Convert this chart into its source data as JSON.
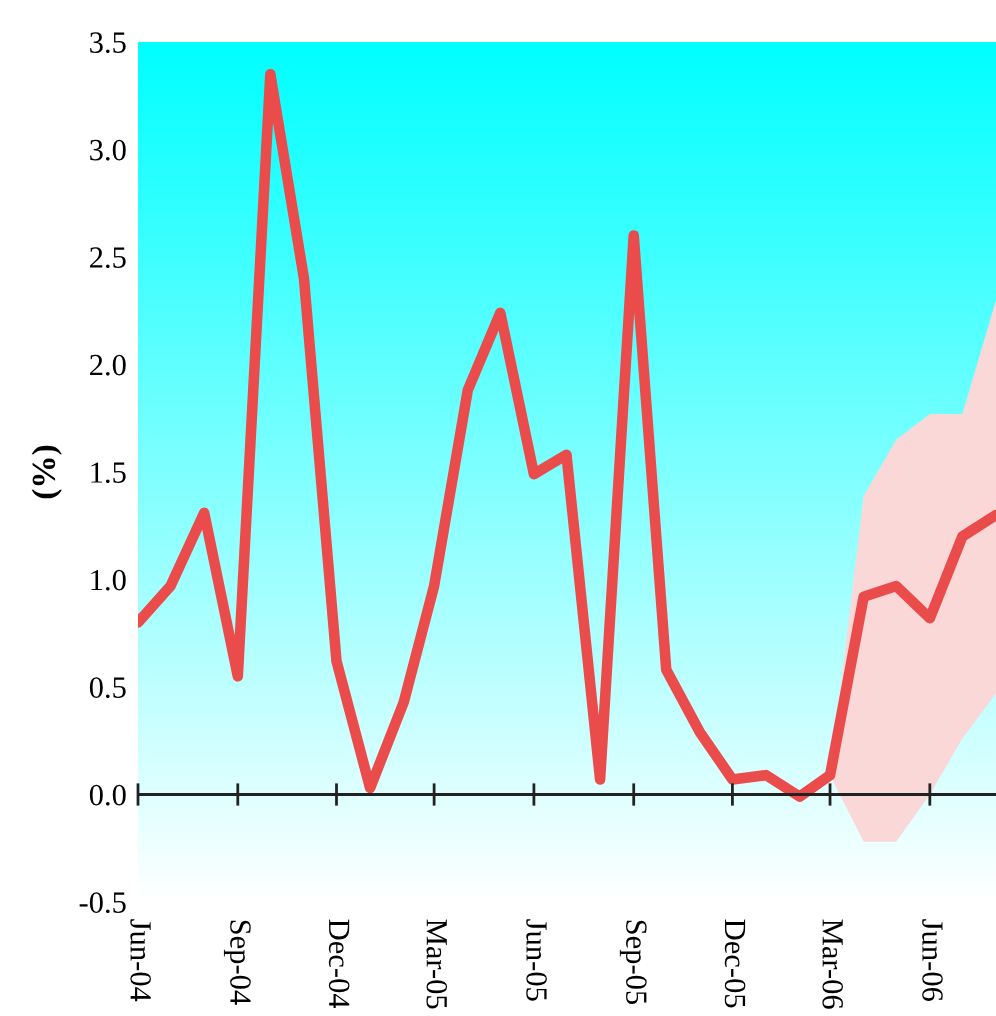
{
  "chart_data": {
    "type": "line",
    "ylabel": "(%)",
    "xlim": [
      "2004-06",
      "2006-08"
    ],
    "xticks": [
      {
        "value": "2004-06",
        "label": "Jun-04"
      },
      {
        "value": "2004-09",
        "label": "Sep-04"
      },
      {
        "value": "2004-12",
        "label": "Dec-04"
      },
      {
        "value": "2005-03",
        "label": "Mar-05"
      },
      {
        "value": "2005-06",
        "label": "Jun-05"
      },
      {
        "value": "2005-09",
        "label": "Sep-05"
      },
      {
        "value": "2005-12",
        "label": "Dec-05"
      },
      {
        "value": "2006-03",
        "label": "Mar-06"
      },
      {
        "value": "2006-06",
        "label": "Jun-06"
      }
    ],
    "ylim": [
      -0.5,
      3.5
    ],
    "yticks": [
      {
        "value": -0.5,
        "label": "-0.5"
      },
      {
        "value": 0,
        "label": "0.0"
      },
      {
        "value": 0.5,
        "label": "0.5"
      },
      {
        "value": 1,
        "label": "1.0"
      },
      {
        "value": 1.5,
        "label": "1.5"
      },
      {
        "value": 2,
        "label": "2.0"
      },
      {
        "value": 2.5,
        "label": "2.5"
      },
      {
        "value": 3,
        "label": "3.0"
      },
      {
        "value": 3.5,
        "label": "3.5"
      }
    ],
    "ref_lines": [
      {
        "axis": "y",
        "value": 0,
        "color": "#222222"
      }
    ],
    "grid": false,
    "legend": false,
    "series": [
      {
        "color": "#ea4c4c",
        "x": [
          "2004-06",
          "2004-07",
          "2004-08",
          "2004-09",
          "2004-10",
          "2004-11",
          "2004-12",
          "2005-01",
          "2005-02",
          "2005-03",
          "2005-04",
          "2005-05",
          "2005-06",
          "2005-07",
          "2005-08",
          "2005-09",
          "2005-10",
          "2005-11",
          "2005-12",
          "2006-01",
          "2006-02",
          "2006-03",
          "2006-04",
          "2006-05",
          "2006-06",
          "2006-07",
          "2006-08"
        ],
        "values": [
          0.8,
          0.97,
          1.31,
          0.55,
          3.35,
          2.4,
          0.62,
          0.03,
          0.43,
          0.97,
          1.88,
          2.24,
          1.49,
          1.58,
          0.07,
          2.6,
          0.58,
          0.29,
          0.07,
          0.09,
          -0.01,
          0.09,
          0.92,
          0.97,
          0.82,
          1.2,
          1.3
        ],
        "lower": [
          null,
          null,
          null,
          null,
          null,
          null,
          null,
          null,
          null,
          null,
          null,
          null,
          null,
          null,
          null,
          null,
          null,
          null,
          null,
          null,
          null,
          0.09,
          -0.22,
          -0.22,
          0.0,
          0.26,
          0.47
        ],
        "upper": [
          null,
          null,
          null,
          null,
          null,
          null,
          null,
          null,
          null,
          null,
          null,
          null,
          null,
          null,
          null,
          null,
          null,
          null,
          null,
          null,
          null,
          0.09,
          1.39,
          1.65,
          1.77,
          1.77,
          2.3
        ]
      }
    ]
  }
}
